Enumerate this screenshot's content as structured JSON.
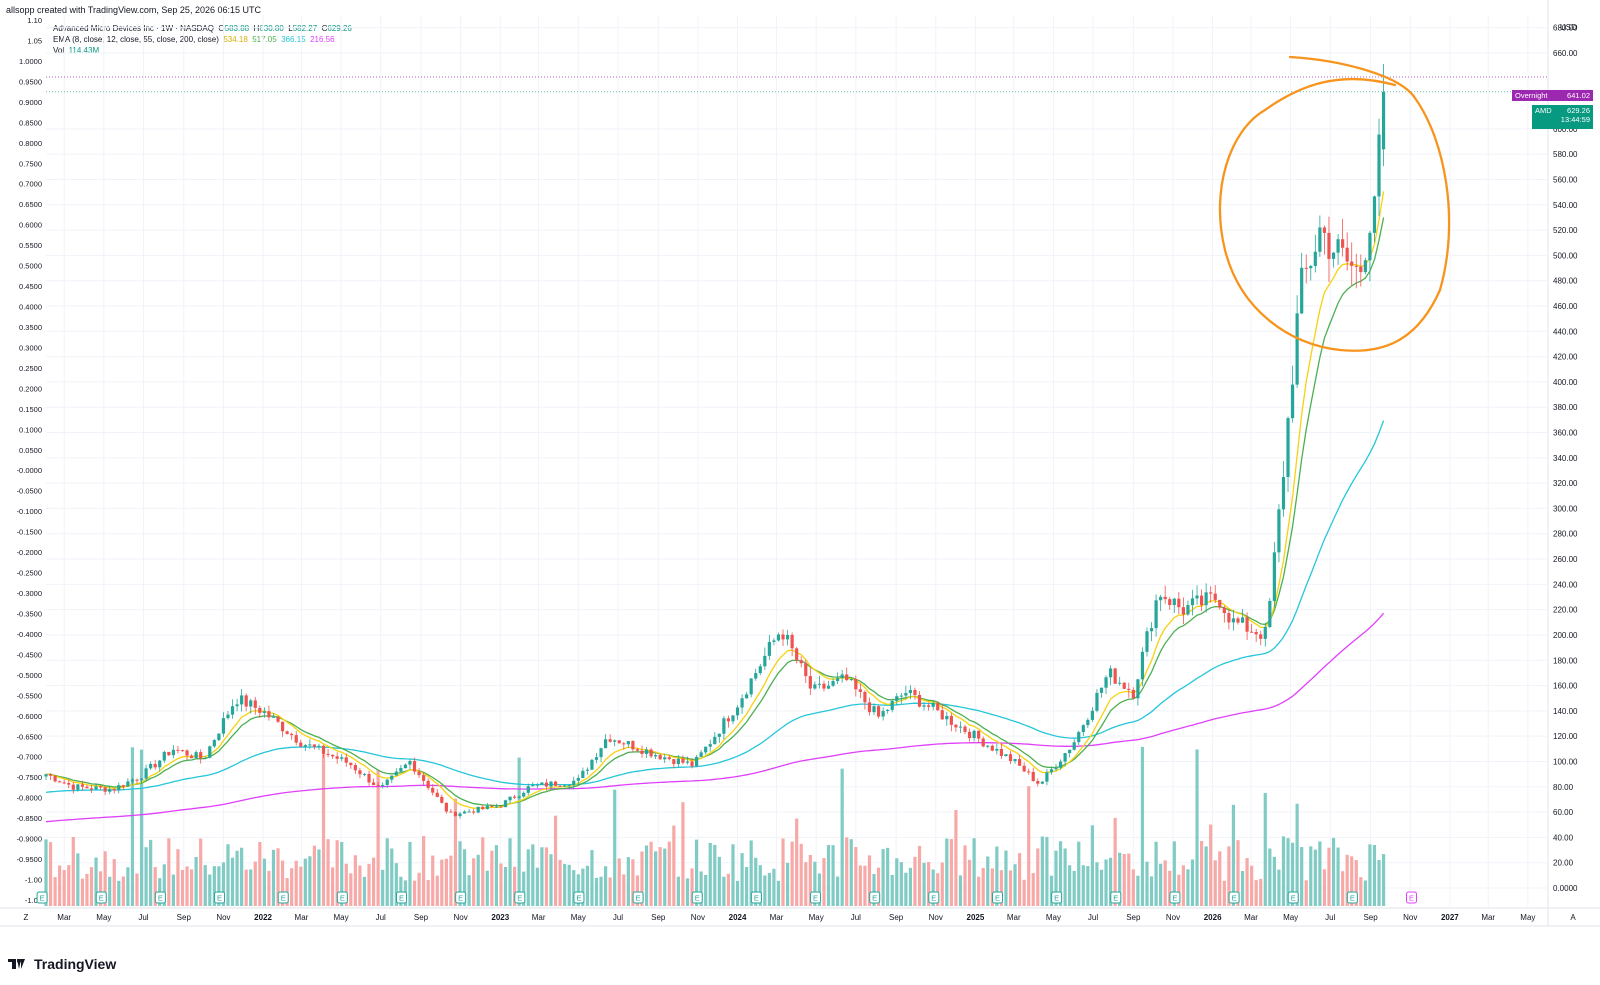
{
  "header": {
    "text": "allsopp created with TradingView.com, Sep 25, 2026 06:15 UTC"
  },
  "legend": {
    "symbol": "Advanced Micro Devices Inc · 1W · NASDAQ",
    "o_label": "O",
    "o": "583.88",
    "h_label": "H",
    "h": "630.80",
    "l_label": "L",
    "l": "582.27",
    "c_label": "C",
    "c": "629.26",
    "ema_label": "EMA (8, close, 12, close, 55, close, 200, close)",
    "ema8": "534.18",
    "ema12": "517.05",
    "ema55": "366.15",
    "ema200": "216.56",
    "vol_label": "Vol",
    "vol": "114.43M"
  },
  "colors": {
    "up": "#26a69a",
    "down": "#ef5350",
    "up_vol": "#80cbc4",
    "down_vol": "#f7a9a7",
    "ema8": "#f5d20f",
    "ema12": "#4caf50",
    "ema55": "#26c6da",
    "ema200": "#e040fb",
    "annotation": "#f7941d",
    "overnight": "#9c27b0",
    "price_tag": "#089981"
  },
  "right_axis": {
    "currency": "USD",
    "ticks": [
      "680.00",
      "660.00",
      "600.00",
      "580.00",
      "560.00",
      "540.00",
      "520.00",
      "500.00",
      "480.00",
      "460.00",
      "440.00",
      "420.00",
      "400.00",
      "380.00",
      "360.00",
      "340.00",
      "320.00",
      "300.00",
      "280.00",
      "260.00",
      "240.00",
      "220.00",
      "200.00",
      "180.00",
      "160.00",
      "140.00",
      "120.00",
      "100.00",
      "80.00",
      "60.00",
      "40.00",
      "20.00",
      "0.0000"
    ],
    "overnight_label": "Overnight",
    "overnight_value": "641.02",
    "symbol_tag": "AMD",
    "last_price": "629.26",
    "countdown": "13:44:59"
  },
  "left_axis": {
    "ticks": [
      "1.10",
      "1.05",
      "1.0000",
      "0.9500",
      "0.9000",
      "0.8500",
      "0.8000",
      "0.7500",
      "0.7000",
      "0.6500",
      "0.6000",
      "0.5500",
      "0.5000",
      "0.4500",
      "0.4000",
      "0.3500",
      "0.3000",
      "0.2500",
      "0.2000",
      "0.1500",
      "0.1000",
      "0.0500",
      "-0.0000",
      "-0.0500",
      "-0.1000",
      "-0.1500",
      "-0.2000",
      "-0.2500",
      "-0.3000",
      "-0.3500",
      "-0.4000",
      "-0.4500",
      "-0.5000",
      "-0.5500",
      "-0.6000",
      "-0.6500",
      "-0.7000",
      "-0.7500",
      "-0.8000",
      "-0.8500",
      "-0.9000",
      "-0.9500",
      "-1.00",
      "-1.05"
    ]
  },
  "x_axis": {
    "left_btn": "Z",
    "right_btn": "A",
    "labels": [
      "Mar",
      "May",
      "Jul",
      "Sep",
      "Nov",
      "2022",
      "Mar",
      "May",
      "Jul",
      "Sep",
      "Nov",
      "2023",
      "Mar",
      "May",
      "Jul",
      "Sep",
      "Nov",
      "2024",
      "Mar",
      "May",
      "Jul",
      "Sep",
      "Nov",
      "2025",
      "Mar",
      "May",
      "Jul",
      "Sep",
      "Nov",
      "2026",
      "Mar",
      "May",
      "Jul",
      "Sep",
      "Nov",
      "2027",
      "Mar",
      "May"
    ]
  },
  "earnings_marker": "E",
  "brand": {
    "name": "TradingView"
  },
  "chart_data": {
    "type": "candlestick",
    "symbol": "AMD",
    "interval": "1W",
    "ylim": [
      0,
      690
    ],
    "x_range": [
      "2021-02",
      "2027-06"
    ],
    "price_keypoints": [
      {
        "date": "2021-02-01",
        "price": 90
      },
      {
        "date": "2021-03-15",
        "price": 80
      },
      {
        "date": "2021-05-15",
        "price": 78
      },
      {
        "date": "2021-07-01",
        "price": 90
      },
      {
        "date": "2021-08-15",
        "price": 110
      },
      {
        "date": "2021-10-01",
        "price": 102
      },
      {
        "date": "2021-11-20",
        "price": 150
      },
      {
        "date": "2021-12-31",
        "price": 140
      },
      {
        "date": "2022-03-01",
        "price": 115
      },
      {
        "date": "2022-05-15",
        "price": 98
      },
      {
        "date": "2022-07-01",
        "price": 78
      },
      {
        "date": "2022-08-15",
        "price": 100
      },
      {
        "date": "2022-10-15",
        "price": 58
      },
      {
        "date": "2022-12-31",
        "price": 65
      },
      {
        "date": "2023-02-15",
        "price": 80
      },
      {
        "date": "2023-05-01",
        "price": 85
      },
      {
        "date": "2023-06-15",
        "price": 120
      },
      {
        "date": "2023-09-01",
        "price": 105
      },
      {
        "date": "2023-10-25",
        "price": 97
      },
      {
        "date": "2023-12-31",
        "price": 145
      },
      {
        "date": "2024-03-08",
        "price": 205
      },
      {
        "date": "2024-04-25",
        "price": 155
      },
      {
        "date": "2024-06-15",
        "price": 165
      },
      {
        "date": "2024-08-05",
        "price": 135
      },
      {
        "date": "2024-09-15",
        "price": 155
      },
      {
        "date": "2024-11-01",
        "price": 140
      },
      {
        "date": "2024-12-31",
        "price": 120
      },
      {
        "date": "2025-03-01",
        "price": 100
      },
      {
        "date": "2025-04-10",
        "price": 82
      },
      {
        "date": "2025-06-01",
        "price": 115
      },
      {
        "date": "2025-07-25",
        "price": 170
      },
      {
        "date": "2025-09-01",
        "price": 155
      },
      {
        "date": "2025-10-10",
        "price": 235
      },
      {
        "date": "2025-11-15",
        "price": 220
      },
      {
        "date": "2026-01-10",
        "price": 230
      },
      {
        "date": "2026-02-01",
        "price": 210
      },
      {
        "date": "2026-03-25",
        "price": 200
      },
      {
        "date": "2026-04-20",
        "price": 330
      },
      {
        "date": "2026-05-15",
        "price": 470
      },
      {
        "date": "2026-06-15",
        "price": 520
      },
      {
        "date": "2026-07-15",
        "price": 500
      },
      {
        "date": "2026-08-15",
        "price": 485
      },
      {
        "date": "2026-09-10",
        "price": 560
      },
      {
        "date": "2026-09-25",
        "price": 629
      }
    ],
    "ema_last": {
      "ema8": 534.18,
      "ema12": 517.05,
      "ema55": 366.15,
      "ema200": 216.56
    },
    "ema200_start": 52,
    "volume_last": "114.43M",
    "earnings_dates": [
      "2021-01-26",
      "2021-04-27",
      "2021-07-27",
      "2021-10-26",
      "2022-02-01",
      "2022-05-03",
      "2022-08-02",
      "2022-11-01",
      "2023-01-31",
      "2023-05-02",
      "2023-08-01",
      "2023-10-31",
      "2024-01-30",
      "2024-04-30",
      "2024-07-30",
      "2024-10-29",
      "2025-02-04",
      "2025-05-06",
      "2025-08-05",
      "2025-11-04",
      "2026-02-03",
      "2026-05-05",
      "2026-08-04",
      "2026-11-03"
    ],
    "last_candle": {
      "open": 583.88,
      "high": 630.8,
      "low": 582.27,
      "close": 629.26
    }
  }
}
